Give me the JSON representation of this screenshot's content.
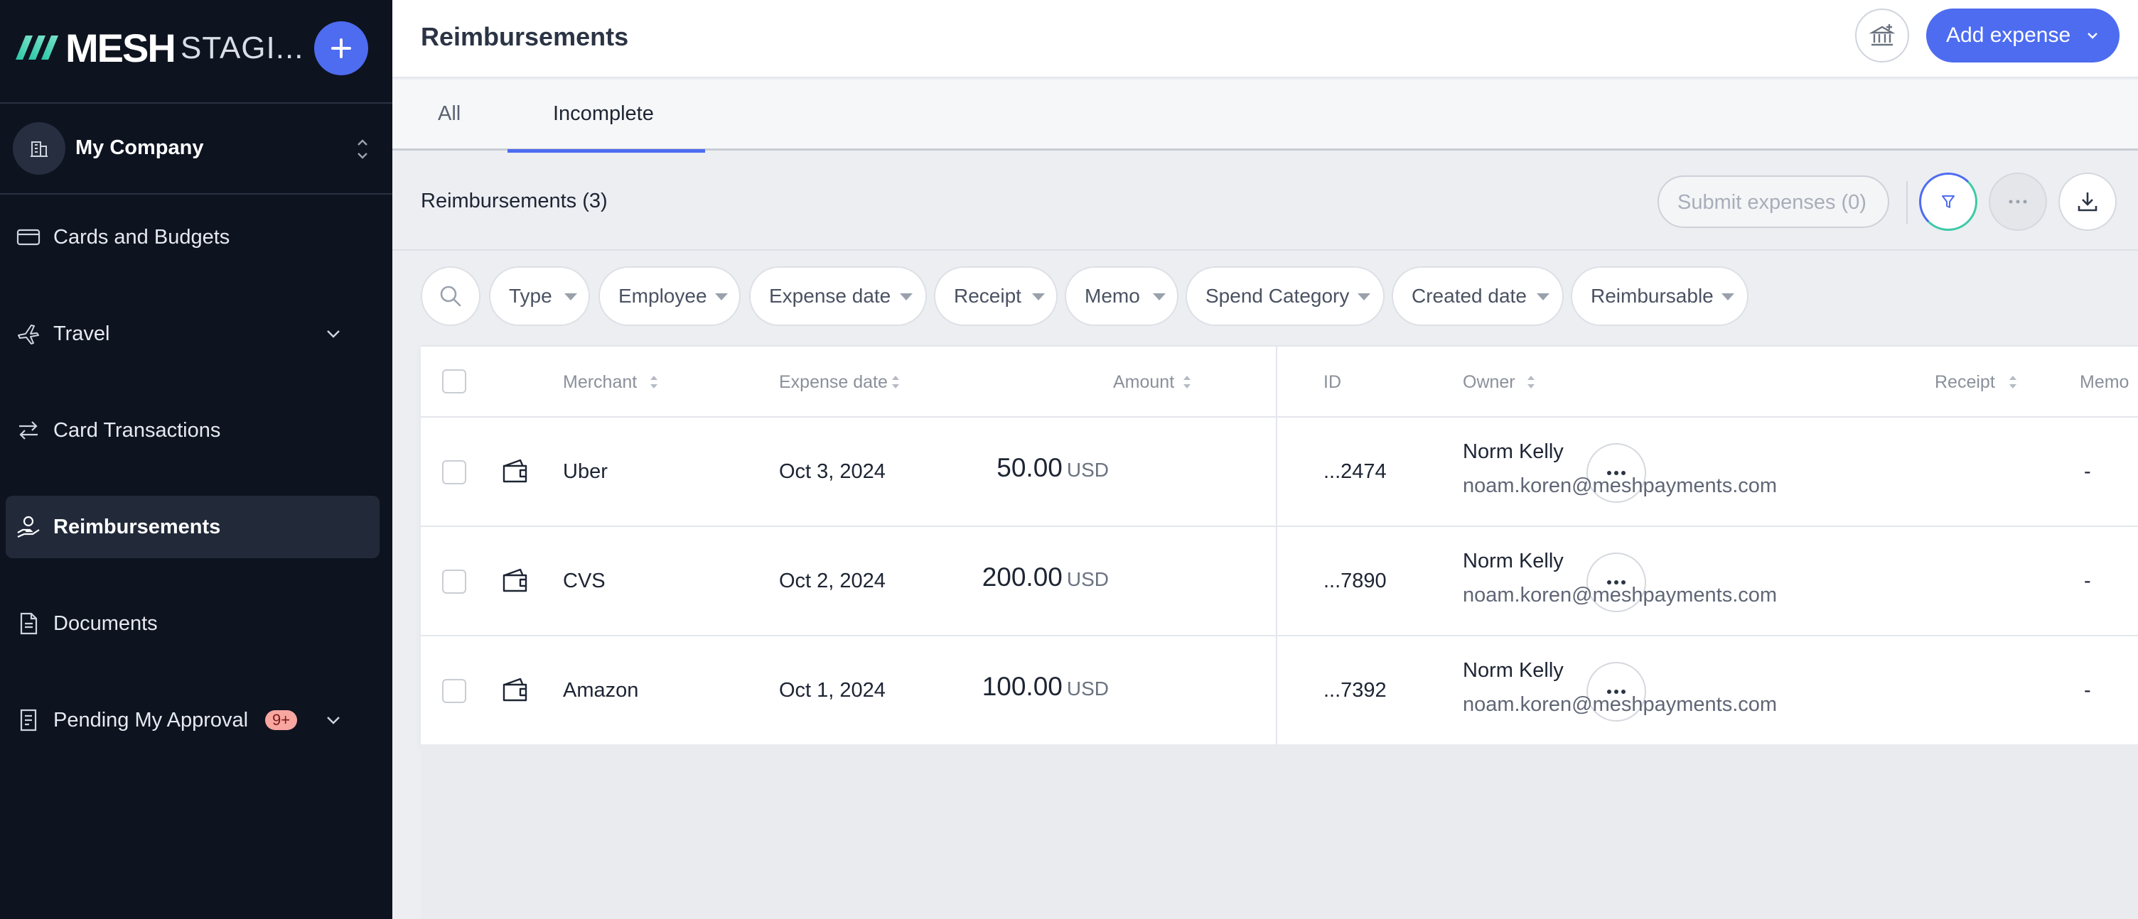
{
  "sidebar": {
    "brand_name": "MESH",
    "brand_env": "STAGI...",
    "company": "My Company",
    "items": [
      {
        "label": "Cards and Budgets"
      },
      {
        "label": "Travel"
      },
      {
        "label": "Card Transactions"
      },
      {
        "label": "Reimbursements"
      },
      {
        "label": "Documents"
      },
      {
        "label": "Pending My Approval",
        "badge": "9+"
      }
    ]
  },
  "header": {
    "title": "Reimbursements",
    "add_expense_label": "Add expense"
  },
  "tabs": [
    {
      "label": "All"
    },
    {
      "label": "Incomplete"
    }
  ],
  "toolbar": {
    "section_title": "Reimbursements (3)",
    "submit_label": "Submit expenses (0)"
  },
  "filters": [
    "Type",
    "Employee",
    "Expense date",
    "Receipt",
    "Memo",
    "Spend Category",
    "Created date",
    "Reimbursable"
  ],
  "table": {
    "columns": {
      "merchant": "Merchant",
      "expense_date": "Expense date",
      "amount": "Amount",
      "id": "ID",
      "owner": "Owner",
      "receipt": "Receipt",
      "memo": "Memo"
    },
    "rows": [
      {
        "merchant": "Uber",
        "date": "Oct 3, 2024",
        "amount": "50.00",
        "currency": "USD",
        "id": "...2474",
        "owner_name": "Norm Kelly",
        "owner_email": "noam.koren@meshpayments.com",
        "memo": "-"
      },
      {
        "merchant": "CVS",
        "date": "Oct 2, 2024",
        "amount": "200.00",
        "currency": "USD",
        "id": "...7890",
        "owner_name": "Norm Kelly",
        "owner_email": "noam.koren@meshpayments.com",
        "memo": "-"
      },
      {
        "merchant": "Amazon",
        "date": "Oct 1, 2024",
        "amount": "100.00",
        "currency": "USD",
        "id": "...7392",
        "owner_name": "Norm Kelly",
        "owner_email": "noam.koren@meshpayments.com",
        "memo": "-"
      }
    ]
  },
  "colors": {
    "accent": "#4d6cf0",
    "sidebar_bg": "#0e1320",
    "badge_bg": "#f8a6a0"
  },
  "icons": {
    "brand_logo": "mesh-logo",
    "add": "plus-icon",
    "company": "building-icon",
    "cards": "credit-card-icon",
    "travel": "airplane-icon",
    "transactions": "arrows-swap-icon",
    "reimbursements": "hand-coin-icon",
    "documents": "document-icon",
    "approval": "checklist-icon",
    "bank": "bank-icon",
    "filter": "filter-icon",
    "more": "ellipsis-icon",
    "download": "download-icon",
    "search": "search-icon",
    "wallet": "wallet-icon"
  }
}
